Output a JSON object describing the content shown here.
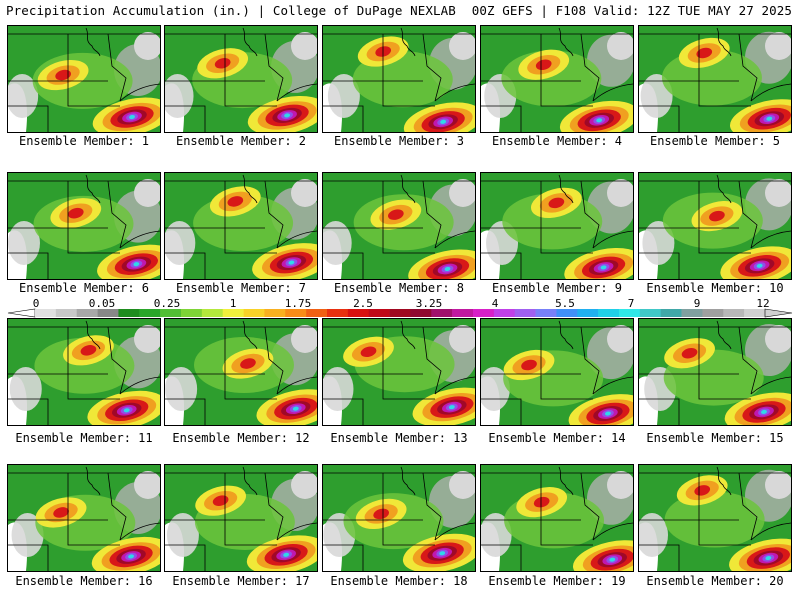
{
  "header": {
    "left": "Precipitation Accumulation (in.) | College of DuPage NEXLAB",
    "right": "00Z GEFS | F108 Valid: 12Z TUE MAY 27 2025"
  },
  "members": [
    {
      "label": "Ensemble Member: 1"
    },
    {
      "label": "Ensemble Member: 2"
    },
    {
      "label": "Ensemble Member: 3"
    },
    {
      "label": "Ensemble Member: 4"
    },
    {
      "label": "Ensemble Member: 5"
    },
    {
      "label": "Ensemble Member: 6"
    },
    {
      "label": "Ensemble Member: 7"
    },
    {
      "label": "Ensemble Member: 8"
    },
    {
      "label": "Ensemble Member: 9"
    },
    {
      "label": "Ensemble Member: 10"
    },
    {
      "label": "Ensemble Member: 11"
    },
    {
      "label": "Ensemble Member: 12"
    },
    {
      "label": "Ensemble Member: 13"
    },
    {
      "label": "Ensemble Member: 14"
    },
    {
      "label": "Ensemble Member: 15"
    },
    {
      "label": "Ensemble Member: 16"
    },
    {
      "label": "Ensemble Member: 17"
    },
    {
      "label": "Ensemble Member: 18"
    },
    {
      "label": "Ensemble Member: 19"
    },
    {
      "label": "Ensemble Member: 20"
    }
  ],
  "colorbar": {
    "ticks": [
      "0",
      "0.05",
      "0.25",
      "1",
      "1.75",
      "2.5",
      "3.25",
      "4",
      "5.5",
      "7",
      "9",
      "12"
    ],
    "colors": [
      "#e0e0e0",
      "#c8c8c8",
      "#a8a8a8",
      "#888888",
      "#1e8c1e",
      "#2aa62a",
      "#52be34",
      "#7ed436",
      "#b4e83c",
      "#f0f03c",
      "#f8d228",
      "#f8b020",
      "#f88c18",
      "#f06014",
      "#e83010",
      "#d81010",
      "#c00818",
      "#a00820",
      "#900830",
      "#a0106c",
      "#c018a0",
      "#d820c8",
      "#c040e8",
      "#a060f0",
      "#7880f8",
      "#4090f8",
      "#20b0f0",
      "#20d0e8",
      "#30e8e8",
      "#40c8c8",
      "#40a8a8",
      "#80a0a0",
      "#a0a0a0",
      "#b8b8b8",
      "#d0d0d0"
    ]
  },
  "map_colors": {
    "background": "#ffffff",
    "light_gray": "#d8d8d8",
    "gray": "#b0b0b0",
    "green": "#2e9e2e",
    "light_green": "#6cc43c",
    "yellow": "#f0e838",
    "orange": "#f0a020",
    "red": "#d81818",
    "dark_red": "#a00828",
    "magenta": "#c018b0",
    "purple": "#9050e8",
    "cyan": "#30d8e8",
    "border": "#000000"
  }
}
